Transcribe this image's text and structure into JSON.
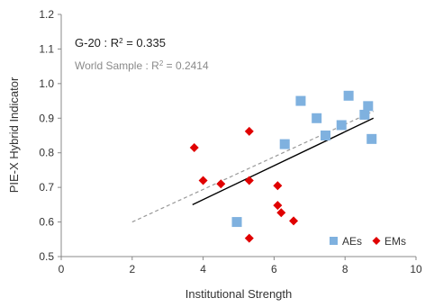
{
  "chart_data": {
    "type": "scatter",
    "xlabel": "Institutional Strength",
    "ylabel": "PIE-X Hybrid Indicator",
    "xlim": [
      0,
      10
    ],
    "ylim": [
      0.5,
      1.2
    ],
    "x_ticks": [
      0,
      2,
      4,
      6,
      8,
      10
    ],
    "y_ticks": [
      0.5,
      0.6,
      0.7,
      0.8,
      0.9,
      1.0,
      1.1,
      1.2
    ],
    "x_tick_labels": [
      "0",
      "2",
      "4",
      "6",
      "8",
      "10"
    ],
    "y_tick_labels": [
      "0.5",
      "0.6",
      "0.7",
      "0.8",
      "0.9",
      "1.0",
      "1.1",
      "1.2"
    ],
    "grid": false,
    "legend_position": "bottom-right",
    "annotations": {
      "g20_label": "G-20 : R",
      "g20_value": " = 0.335",
      "world_label": "World Sample : R",
      "world_value": " = 0.2414",
      "superscript": "2"
    },
    "series": [
      {
        "name": "AEs",
        "marker": "square",
        "color": "#7fb1df",
        "points": [
          [
            4.95,
            0.6
          ],
          [
            6.3,
            0.825
          ],
          [
            6.75,
            0.95
          ],
          [
            7.2,
            0.9
          ],
          [
            7.45,
            0.85
          ],
          [
            7.9,
            0.88
          ],
          [
            8.1,
            0.965
          ],
          [
            8.55,
            0.91
          ],
          [
            8.65,
            0.935
          ],
          [
            8.75,
            0.84
          ]
        ]
      },
      {
        "name": "EMs",
        "marker": "diamond",
        "color": "#e00000",
        "points": [
          [
            3.75,
            0.815
          ],
          [
            4.0,
            0.72
          ],
          [
            4.5,
            0.71
          ],
          [
            5.3,
            0.862
          ],
          [
            5.3,
            0.72
          ],
          [
            5.3,
            0.553
          ],
          [
            6.1,
            0.705
          ],
          [
            6.1,
            0.648
          ],
          [
            6.2,
            0.627
          ],
          [
            6.55,
            0.603
          ]
        ]
      }
    ],
    "trendlines": [
      {
        "sample": "World Sample",
        "style": "dashed",
        "color": "#999999",
        "x": [
          2.0,
          8.8
        ],
        "y": [
          0.6,
          0.92
        ]
      },
      {
        "sample": "G-20",
        "style": "solid",
        "color": "#000000",
        "x": [
          3.7,
          8.8
        ],
        "y": [
          0.65,
          0.9
        ]
      }
    ]
  }
}
